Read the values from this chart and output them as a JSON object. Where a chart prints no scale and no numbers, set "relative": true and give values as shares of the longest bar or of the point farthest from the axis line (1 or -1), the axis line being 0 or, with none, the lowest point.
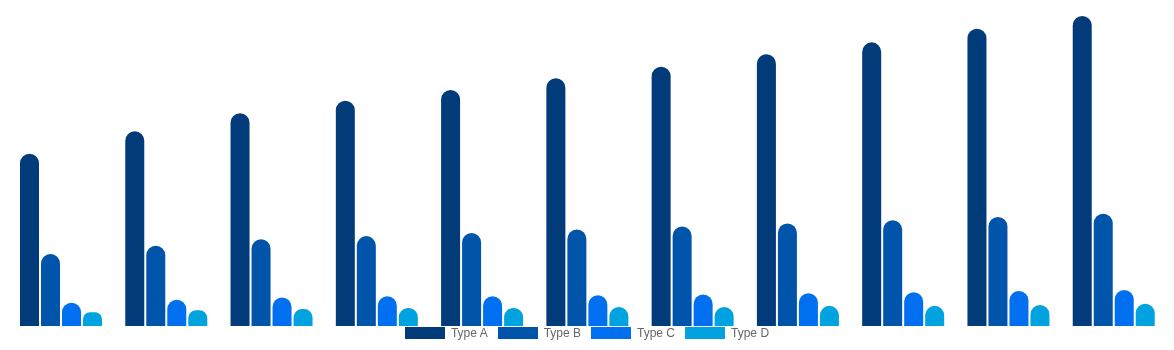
{
  "chart_data": {
    "type": "bar",
    "relative": true,
    "categories": [
      null,
      null,
      null,
      null,
      null,
      null,
      null,
      null,
      null,
      null,
      null
    ],
    "legend": "bottom",
    "series": [
      {
        "name": "Type A",
        "color": "#023b7a",
        "values": [
          0.556,
          0.628,
          0.686,
          0.727,
          0.761,
          0.799,
          0.836,
          0.877,
          0.915,
          0.959,
          1
        ]
      },
      {
        "name": "Type B",
        "color": "#0055aa",
        "values": [
          0.232,
          0.259,
          0.28,
          0.29,
          0.3,
          0.311,
          0.321,
          0.331,
          0.341,
          0.352,
          0.362
        ]
      },
      {
        "name": "Type C",
        "color": "#006ff0",
        "values": [
          0.075,
          0.085,
          0.092,
          0.096,
          0.096,
          0.099,
          0.102,
          0.106,
          0.109,
          0.113,
          0.116
        ]
      },
      {
        "name": "Type D",
        "color": "#00a3e0",
        "values": [
          0.044,
          0.051,
          0.055,
          0.058,
          0.058,
          0.061,
          0.061,
          0.065,
          0.065,
          0.068,
          0.072
        ]
      }
    ]
  }
}
